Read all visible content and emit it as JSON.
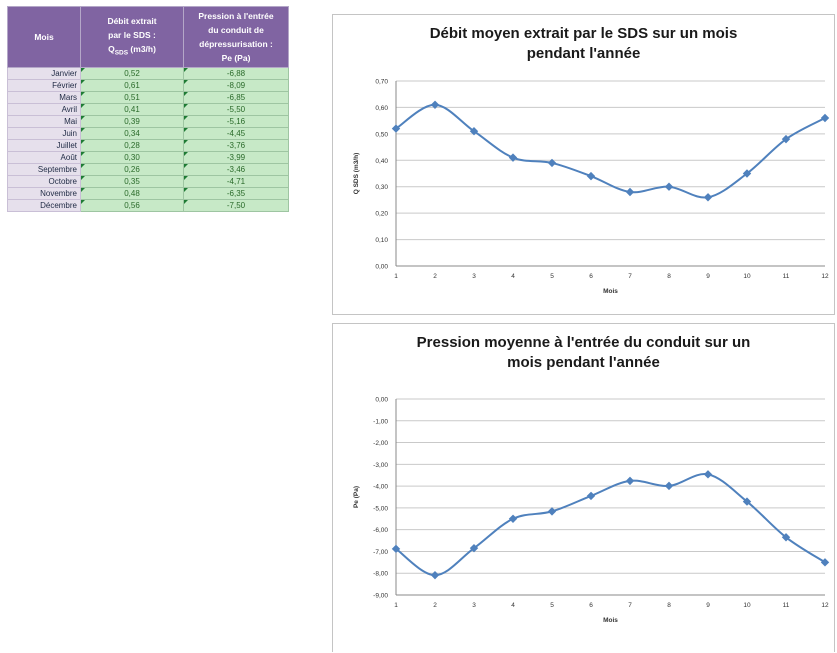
{
  "table": {
    "headers": {
      "month": "Mois",
      "debit_line1": "Débit extrait",
      "debit_line2": "par le SDS :",
      "debit_q": "Q",
      "debit_q_sub": "SDS",
      "debit_unit": " (m3/h)",
      "pressure_line1": "Pression à l'entrée",
      "pressure_line2": "du conduit de",
      "pressure_line3": "dépressurisation :",
      "pressure_line4": "Pe (Pa)"
    },
    "rows": [
      {
        "month": "Janvier",
        "debit": "0,52",
        "pressure": "-6,88"
      },
      {
        "month": "Février",
        "debit": "0,61",
        "pressure": "-8,09"
      },
      {
        "month": "Mars",
        "debit": "0,51",
        "pressure": "-6,85"
      },
      {
        "month": "Avril",
        "debit": "0,41",
        "pressure": "-5,50"
      },
      {
        "month": "Mai",
        "debit": "0,39",
        "pressure": "-5,16"
      },
      {
        "month": "Juin",
        "debit": "0,34",
        "pressure": "-4,45"
      },
      {
        "month": "Juillet",
        "debit": "0,28",
        "pressure": "-3,76"
      },
      {
        "month": "Août",
        "debit": "0,30",
        "pressure": "-3,99"
      },
      {
        "month": "Septembre",
        "debit": "0,26",
        "pressure": "-3,46"
      },
      {
        "month": "Octobre",
        "debit": "0,35",
        "pressure": "-4,71"
      },
      {
        "month": "Novembre",
        "debit": "0,48",
        "pressure": "-6,35"
      },
      {
        "month": "Décembre",
        "debit": "0,56",
        "pressure": "-7,50"
      }
    ]
  },
  "colors": {
    "header_bg": "#8064a2",
    "month_bg": "#e6e0ec",
    "value_bg": "#c7e9c7",
    "series_line": "#4f81bd"
  },
  "chart_data": [
    {
      "type": "line",
      "title_line1": "Débit moyen extrait par le SDS sur un mois",
      "title_line2": "pendant l'année",
      "xlabel": "Mois",
      "ylabel": "Q SDS (m3/h)",
      "x": [
        1,
        2,
        3,
        4,
        5,
        6,
        7,
        8,
        9,
        10,
        11,
        12
      ],
      "values": [
        0.52,
        0.61,
        0.51,
        0.41,
        0.39,
        0.34,
        0.28,
        0.3,
        0.26,
        0.35,
        0.48,
        0.56
      ],
      "ylim": [
        0,
        0.7
      ],
      "yticks": [
        "0,00",
        "0,10",
        "0,20",
        "0,30",
        "0,40",
        "0,50",
        "0,60",
        "0,70"
      ],
      "grid": true,
      "smooth": true
    },
    {
      "type": "line",
      "title_line1": "Pression moyenne à l'entrée du conduit sur un",
      "title_line2": "mois pendant l'année",
      "xlabel": "Mois",
      "ylabel": "Pe (Pa)",
      "x": [
        1,
        2,
        3,
        4,
        5,
        6,
        7,
        8,
        9,
        10,
        11,
        12
      ],
      "values": [
        -6.88,
        -8.09,
        -6.85,
        -5.5,
        -5.16,
        -4.45,
        -3.76,
        -3.99,
        -3.46,
        -4.71,
        -6.35,
        -7.5
      ],
      "ylim": [
        -9,
        0
      ],
      "yticks": [
        "-9,00",
        "-8,00",
        "-7,00",
        "-6,00",
        "-5,00",
        "-4,00",
        "-3,00",
        "-2,00",
        "-1,00",
        "0,00"
      ],
      "grid": true,
      "smooth": true
    }
  ]
}
